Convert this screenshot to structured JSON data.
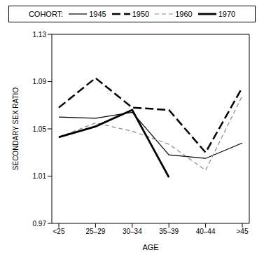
{
  "chart_data": {
    "type": "line",
    "legend_title": "COHORT:",
    "legend": "top",
    "x_label": "AGE",
    "y_label": "SECONDARY SEX RATIO",
    "categories": [
      "<25",
      "25–29",
      "30–34",
      "35–39",
      "40–44",
      ">45"
    ],
    "ylim": [
      0.97,
      1.13
    ],
    "yticks": [
      0.97,
      1.01,
      1.05,
      1.09,
      1.13
    ],
    "grid": false,
    "series": [
      {
        "name": "1945",
        "color": "#000000",
        "line_style": "solid",
        "values": [
          1.06,
          1.059,
          1.064,
          1.028,
          1.025,
          1.038
        ]
      },
      {
        "name": "1950",
        "color": "#000000",
        "line_style": "dashed",
        "values": [
          1.068,
          1.093,
          1.068,
          1.066,
          1.03,
          1.085
        ]
      },
      {
        "name": "1960",
        "color": "#888888",
        "line_style": "dashed",
        "values": [
          1.043,
          1.055,
          1.048,
          1.037,
          1.015,
          1.078
        ]
      },
      {
        "name": "1970",
        "color": "#000000",
        "line_style": "solid",
        "values": [
          1.043,
          1.052,
          1.066,
          1.009,
          null,
          null
        ]
      }
    ]
  }
}
